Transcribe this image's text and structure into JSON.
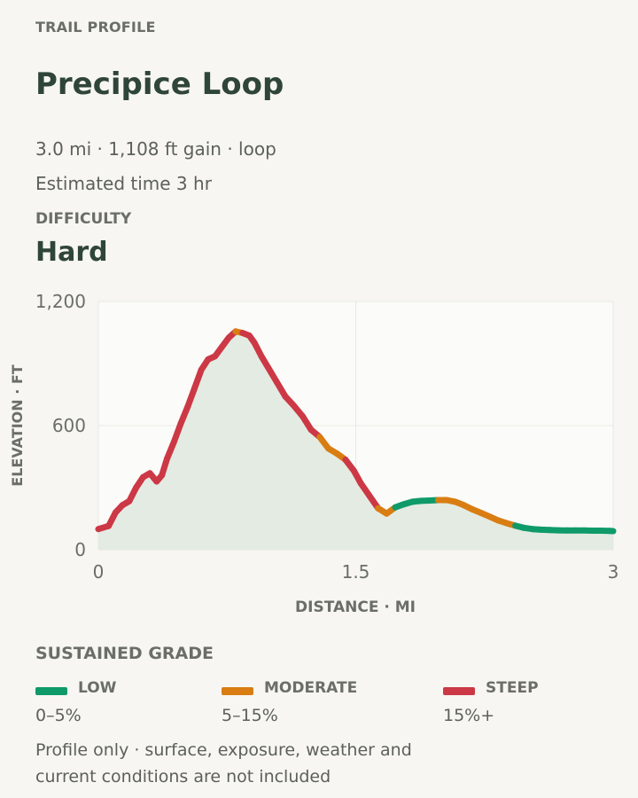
{
  "header": {
    "eyebrow": "TRAIL PROFILE",
    "title": "Precipice Loop",
    "stats": "3.0 mi · 1,108 ft gain · loop",
    "time": "Estimated time 3 hr"
  },
  "difficulty": {
    "label": "DIFFICULTY",
    "value": "Hard"
  },
  "chart_data": {
    "type": "line",
    "xlabel": "DISTANCE · MI",
    "ylabel": "ELEVATION · FT",
    "xlim": [
      0,
      3
    ],
    "ylim": [
      0,
      1200
    ],
    "xticks": [
      0,
      1.5,
      3
    ],
    "xtick_labels": [
      "0",
      "1.5",
      "3"
    ],
    "yticks": [
      0,
      600,
      1200
    ],
    "ytick_labels": [
      "0",
      "600",
      "1,200"
    ],
    "grid": true,
    "series": [
      {
        "x": [
          0,
          0.06,
          0.1,
          0.14,
          0.18,
          0.22,
          0.26,
          0.3,
          0.34,
          0.37,
          0.4,
          0.44,
          0.48,
          0.52,
          0.56,
          0.6,
          0.64,
          0.68,
          0.72,
          0.76,
          0.8,
          0.84,
          0.88,
          0.91,
          0.95,
          0.99,
          1.04,
          1.09,
          1.14,
          1.19,
          1.24,
          1.29,
          1.34,
          1.39,
          1.44,
          1.49,
          1.53,
          1.58,
          1.63,
          1.68,
          1.73,
          1.78,
          1.83,
          1.88,
          1.93,
          1.98,
          2.03,
          2.08,
          2.13,
          2.18,
          2.23,
          2.28,
          2.33,
          2.38,
          2.43,
          2.48,
          2.53,
          2.58,
          2.63,
          2.68,
          2.73,
          2.78,
          2.83,
          2.88,
          2.93,
          2.98,
          3.0
        ],
        "y": [
          100,
          115,
          180,
          215,
          235,
          300,
          350,
          370,
          330,
          360,
          440,
          520,
          610,
          690,
          780,
          870,
          920,
          935,
          980,
          1025,
          1055,
          1048,
          1035,
          1000,
          935,
          880,
          810,
          740,
          695,
          645,
          580,
          545,
          490,
          465,
          435,
          380,
          320,
          260,
          200,
          175,
          205,
          220,
          232,
          236,
          238,
          240,
          240,
          232,
          215,
          195,
          178,
          160,
          142,
          128,
          116,
          106,
          100,
          97,
          95,
          94,
          93,
          93,
          93,
          92,
          92,
          91,
          90
        ],
        "grade": [
          "steep",
          "steep",
          "steep",
          "steep",
          "steep",
          "steep",
          "steep",
          "steep",
          "steep",
          "steep",
          "steep",
          "steep",
          "steep",
          "steep",
          "steep",
          "steep",
          "steep",
          "steep",
          "steep",
          "steep",
          "moderate",
          "steep",
          "steep",
          "steep",
          "steep",
          "steep",
          "steep",
          "steep",
          "steep",
          "steep",
          "steep",
          "moderate",
          "moderate",
          "moderate",
          "steep",
          "steep",
          "steep",
          "steep",
          "moderate",
          "moderate",
          "low",
          "low",
          "low",
          "low",
          "low",
          "moderate",
          "moderate",
          "moderate",
          "moderate",
          "moderate",
          "moderate",
          "moderate",
          "moderate",
          "moderate",
          "low",
          "low",
          "low",
          "low",
          "low",
          "low",
          "low",
          "low",
          "low",
          "low",
          "low",
          "low"
        ]
      }
    ]
  },
  "legend": {
    "title": "SUSTAINED GRADE",
    "items": [
      {
        "key": "low",
        "label": "LOW",
        "range": "0–5%",
        "color": "#0f9a6a"
      },
      {
        "key": "moderate",
        "label": "MODERATE",
        "range": "5–15%",
        "color": "#d97d12"
      },
      {
        "key": "steep",
        "label": "STEEP",
        "range": "15%+",
        "color": "#cc3845"
      }
    ]
  },
  "footnote": "Profile only · surface, exposure, weather and current conditions are not included"
}
